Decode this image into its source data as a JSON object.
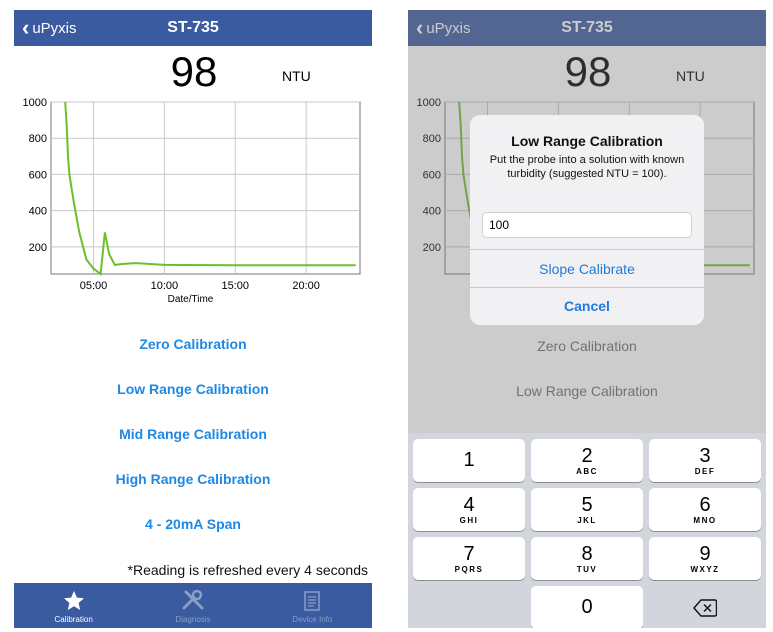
{
  "colors": {
    "navbar": "#3a5ba0",
    "link": "#1e88e5",
    "series": "#6cbf2a",
    "grid": "#c8c8c8"
  },
  "left": {
    "nav": {
      "back_label": "uPyxis",
      "title": "ST-735"
    },
    "reading": {
      "value": "98",
      "unit": "NTU"
    },
    "calibration": [
      "Zero Calibration",
      "Low Range Calibration",
      "Mid Range Calibration",
      "High Range Calibration",
      "4 - 20mA Span"
    ],
    "note": "*Reading is refreshed every 4 seconds",
    "tabs": [
      {
        "label": "Calibration",
        "icon": "star-icon",
        "active": true
      },
      {
        "label": "Diagnosis",
        "icon": "tools-icon",
        "active": false
      },
      {
        "label": "Device Info",
        "icon": "document-icon",
        "active": false
      }
    ]
  },
  "right": {
    "nav": {
      "back_label": "uPyxis",
      "title": "ST-735"
    },
    "reading": {
      "value": "98",
      "unit": "NTU"
    },
    "chart_visible_xtick": ":00",
    "calibration_visible": [
      "Zero Calibration",
      "Low Range Calibration"
    ],
    "dialog": {
      "title": "Low Range Calibration",
      "message": "Put the probe into a solution with known turbidity (suggested NTU = 100).",
      "input_value": "100",
      "primary_button": "Slope Calibrate",
      "cancel_button": "Cancel"
    },
    "keypad": [
      {
        "digit": "1",
        "letters": ""
      },
      {
        "digit": "2",
        "letters": "ABC"
      },
      {
        "digit": "3",
        "letters": "DEF"
      },
      {
        "digit": "4",
        "letters": "GHI"
      },
      {
        "digit": "5",
        "letters": "JKL"
      },
      {
        "digit": "6",
        "letters": "MNO"
      },
      {
        "digit": "7",
        "letters": "PQRS"
      },
      {
        "digit": "8",
        "letters": "TUV"
      },
      {
        "digit": "9",
        "letters": "WXYZ"
      },
      {
        "digit": "0",
        "letters": ""
      }
    ],
    "delete_key_icon": "backspace-icon"
  },
  "chart_data": {
    "type": "line",
    "xlabel": "Date/Time",
    "ylabel": "",
    "yticks": [
      200,
      400,
      600,
      800,
      1000
    ],
    "ylim": [
      50,
      1000
    ],
    "xticks": [
      "05:00",
      "10:00",
      "15:00",
      "20:00"
    ],
    "xtick_hours": [
      5,
      10,
      15,
      20
    ],
    "xlim_hours": [
      2,
      23.8
    ],
    "grid": true,
    "series": [
      {
        "points": [
          [
            3.0,
            1000
          ],
          [
            3.1,
            880
          ],
          [
            3.2,
            700
          ],
          [
            3.3,
            600
          ],
          [
            3.6,
            450
          ],
          [
            4.0,
            280
          ],
          [
            4.5,
            130
          ],
          [
            5.0,
            80
          ],
          [
            5.5,
            50
          ],
          [
            5.8,
            280
          ],
          [
            6.1,
            160
          ],
          [
            6.5,
            100
          ],
          [
            7.0,
            105
          ],
          [
            8.0,
            110
          ],
          [
            10.0,
            100
          ],
          [
            15.0,
            98
          ],
          [
            20.0,
            98
          ],
          [
            23.5,
            98
          ]
        ]
      }
    ]
  }
}
